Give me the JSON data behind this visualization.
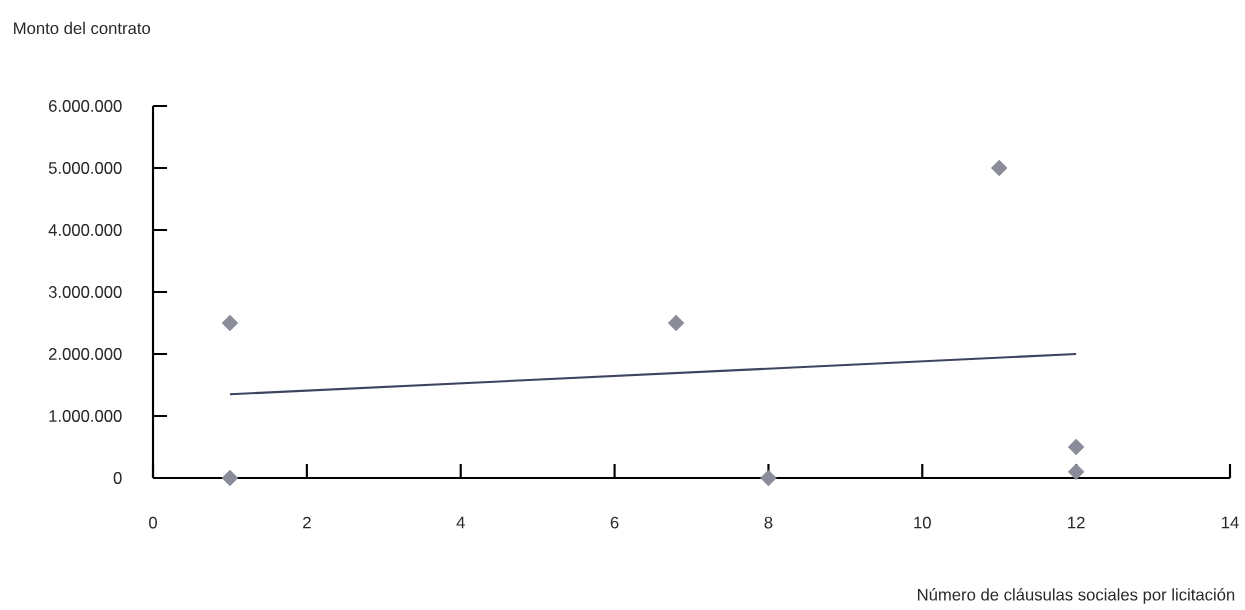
{
  "chart_data": {
    "type": "scatter",
    "xlabel": "Número de cláusulas sociales por licitación",
    "ylabel": "Monto del contrato",
    "xlim": [
      0,
      14
    ],
    "ylim": [
      0,
      6000000
    ],
    "xticks": [
      0,
      2,
      4,
      6,
      8,
      10,
      12,
      14
    ],
    "yticks": [
      {
        "value": 0,
        "label": "0"
      },
      {
        "value": 1000000,
        "label": "1.000.000"
      },
      {
        "value": 2000000,
        "label": "2.000.000"
      },
      {
        "value": 3000000,
        "label": "3.000.000"
      },
      {
        "value": 4000000,
        "label": "4.000.000"
      },
      {
        "value": 5000000,
        "label": "5.000.000"
      },
      {
        "value": 6000000,
        "label": "6.000.000"
      }
    ],
    "series": [
      {
        "marker": "diamond",
        "color": "#8a8d99",
        "x": [
          1,
          1,
          6.8,
          8,
          11,
          12,
          12
        ],
        "values": [
          2500000,
          0,
          2500000,
          0,
          5000000,
          500000,
          100000
        ]
      },
      {
        "type": "line",
        "color": "#3d4460",
        "x": [
          1,
          12
        ],
        "values": [
          1350000,
          2000000
        ]
      }
    ]
  }
}
